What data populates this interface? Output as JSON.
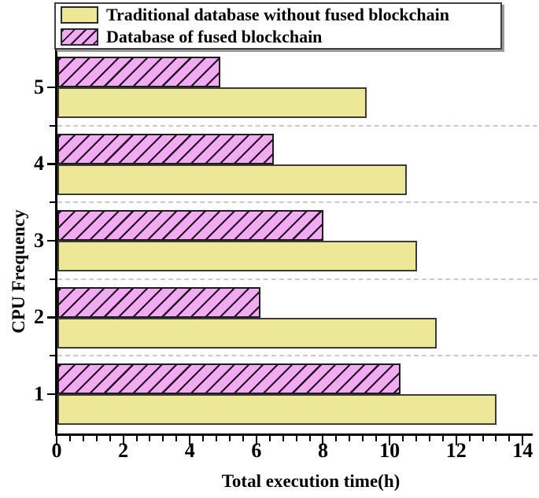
{
  "chart_data": {
    "type": "bar",
    "orientation": "horizontal",
    "title": "",
    "xlabel": "Total execution time(h)",
    "ylabel": "CPU Frequency",
    "categories": [
      "1",
      "2",
      "3",
      "4",
      "5"
    ],
    "series": [
      {
        "name": "Traditional database without fused blockchain",
        "color": "#EDE897",
        "hatch": "none",
        "values": [
          13.2,
          11.4,
          10.8,
          10.5,
          9.3
        ]
      },
      {
        "name": "Database of fused blockchain",
        "color": "#F1ABF1",
        "hatch": "/",
        "values": [
          10.3,
          6.1,
          8.0,
          6.5,
          4.9
        ]
      }
    ],
    "xlim": [
      0,
      14.3
    ],
    "xticks": [
      0,
      2,
      4,
      6,
      8,
      10,
      12,
      14
    ],
    "x_minor_tick_step": 0.4,
    "grid": {
      "style": "dashed",
      "color": "#c9c9c9",
      "placement": "horizontal-between-categories"
    },
    "legend_position": "top-inside",
    "axis_color": "#000000",
    "hatch_line_color": "#240a24"
  }
}
